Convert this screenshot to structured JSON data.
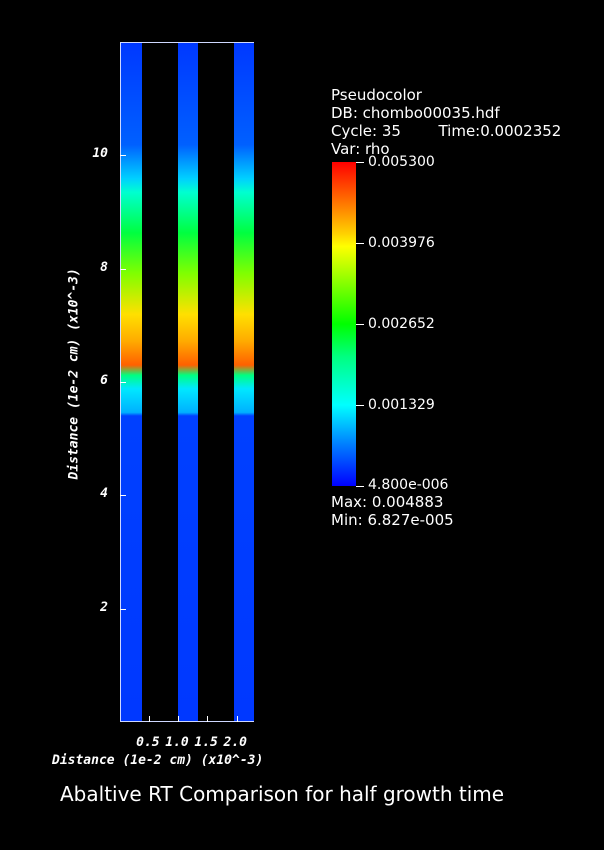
{
  "plot": {
    "strip_gradient": "linear-gradient(to bottom,#0038ff 0%,#0060ff 15%,#00d0ff 20%,#00ffd0 22%,#00ff40 28%,#80ff00 34%,#ffe000 40%,#ffaa00 44%,#ff8000 46%,#ff6000 47.5%,#00ff80 49%,#00e8ff 51%,#00b0ff 54.5%,#0040ff 55%,#0038ff 100%)",
    "y_ticks": [
      "10",
      "8",
      "6",
      "4",
      "2"
    ],
    "y_tick_values": [
      10,
      8,
      6,
      4,
      2
    ],
    "y_range": [
      0,
      12
    ],
    "x_ticks": [
      "0.5",
      "1.0",
      "1.5",
      "2.0"
    ],
    "x_tick_values": [
      0.5,
      1.0,
      1.5,
      2.0
    ],
    "x_range": [
      0,
      2.3
    ],
    "ylabel": "Distance (1e-2 cm) (x10^-3)",
    "xlabel": "Distance (1e-2 cm) (x10^-3)"
  },
  "legend": {
    "plot_type": "Pseudocolor",
    "db": "DB: chombo00035.hdf",
    "cycle": "Cycle: 35",
    "time": "Time:0.0002352",
    "var": "Var: rho",
    "colorbar_labels": [
      "0.005300",
      "0.003976",
      "0.002652",
      "0.001329",
      "4.800e-006"
    ],
    "max": "Max:  0.004883",
    "min": "Min:  6.827e-005"
  },
  "caption": "Abaltive RT Comparison for half growth time"
}
